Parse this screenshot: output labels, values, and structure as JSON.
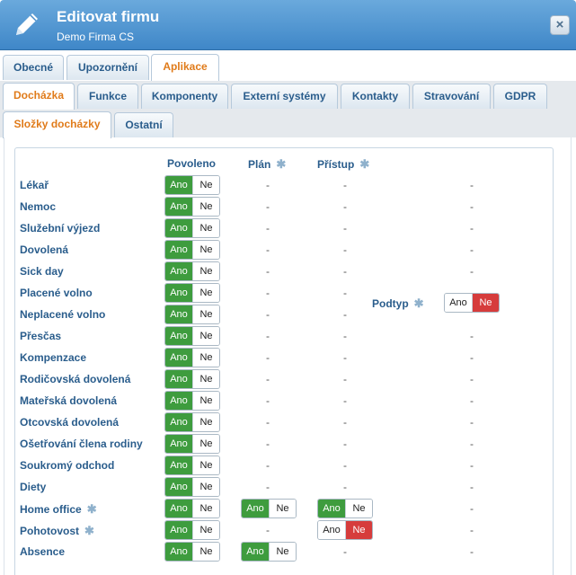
{
  "header": {
    "title": "Editovat firmu",
    "subtitle": "Demo Firma CS",
    "close_label": "×"
  },
  "tabs_row1": [
    "Obecné",
    "Upozornění",
    "Aplikace"
  ],
  "tabs_row2": [
    "Docházka",
    "Funkce",
    "Komponenty",
    "Externí systémy",
    "Kontakty",
    "Stravování",
    "GDPR"
  ],
  "tabs_row3": [
    "Složky docházky",
    "Ostatní"
  ],
  "columns": {
    "povoleno": "Povoleno",
    "plan": "Plán",
    "pristup": "Přístup"
  },
  "toggle": {
    "yes": "Ano",
    "no": "Ne"
  },
  "dash": "-",
  "podtyp": {
    "label": "Podtyp",
    "value": "Ne"
  },
  "rows": [
    {
      "label": "Lékař",
      "povoleno": "Ano"
    },
    {
      "label": "Nemoc",
      "povoleno": "Ano"
    },
    {
      "label": "Služební výjezd",
      "povoleno": "Ano"
    },
    {
      "label": "Dovolená",
      "povoleno": "Ano"
    },
    {
      "label": "Sick day",
      "povoleno": "Ano"
    },
    {
      "label": "Placené volno",
      "povoleno": "Ano"
    },
    {
      "label": "Neplacené volno",
      "povoleno": "Ano"
    },
    {
      "label": "Přesčas",
      "povoleno": "Ano"
    },
    {
      "label": "Kompenzace",
      "povoleno": "Ano"
    },
    {
      "label": "Rodičovská dovolená",
      "povoleno": "Ano"
    },
    {
      "label": "Mateřská dovolená",
      "povoleno": "Ano"
    },
    {
      "label": "Otcovská dovolená",
      "povoleno": "Ano"
    },
    {
      "label": "Ošetřování člena rodiny",
      "povoleno": "Ano"
    },
    {
      "label": "Soukromý odchod",
      "povoleno": "Ano"
    },
    {
      "label": "Diety",
      "povoleno": "Ano"
    },
    {
      "label": "Home office",
      "povoleno": "Ano",
      "plan": "Ano",
      "pristup": "Ano",
      "gear": true
    },
    {
      "label": "Pohotovost",
      "povoleno": "Ano",
      "pristup": "Ne",
      "gear": true
    },
    {
      "label": "Absence",
      "povoleno": "Ano",
      "plan": "Ano"
    }
  ],
  "colors": {
    "header": "#4a90d0",
    "active_tab_text": "#e07b1a",
    "toggle_green": "#3e9c3e",
    "toggle_red": "#d63c3c"
  }
}
